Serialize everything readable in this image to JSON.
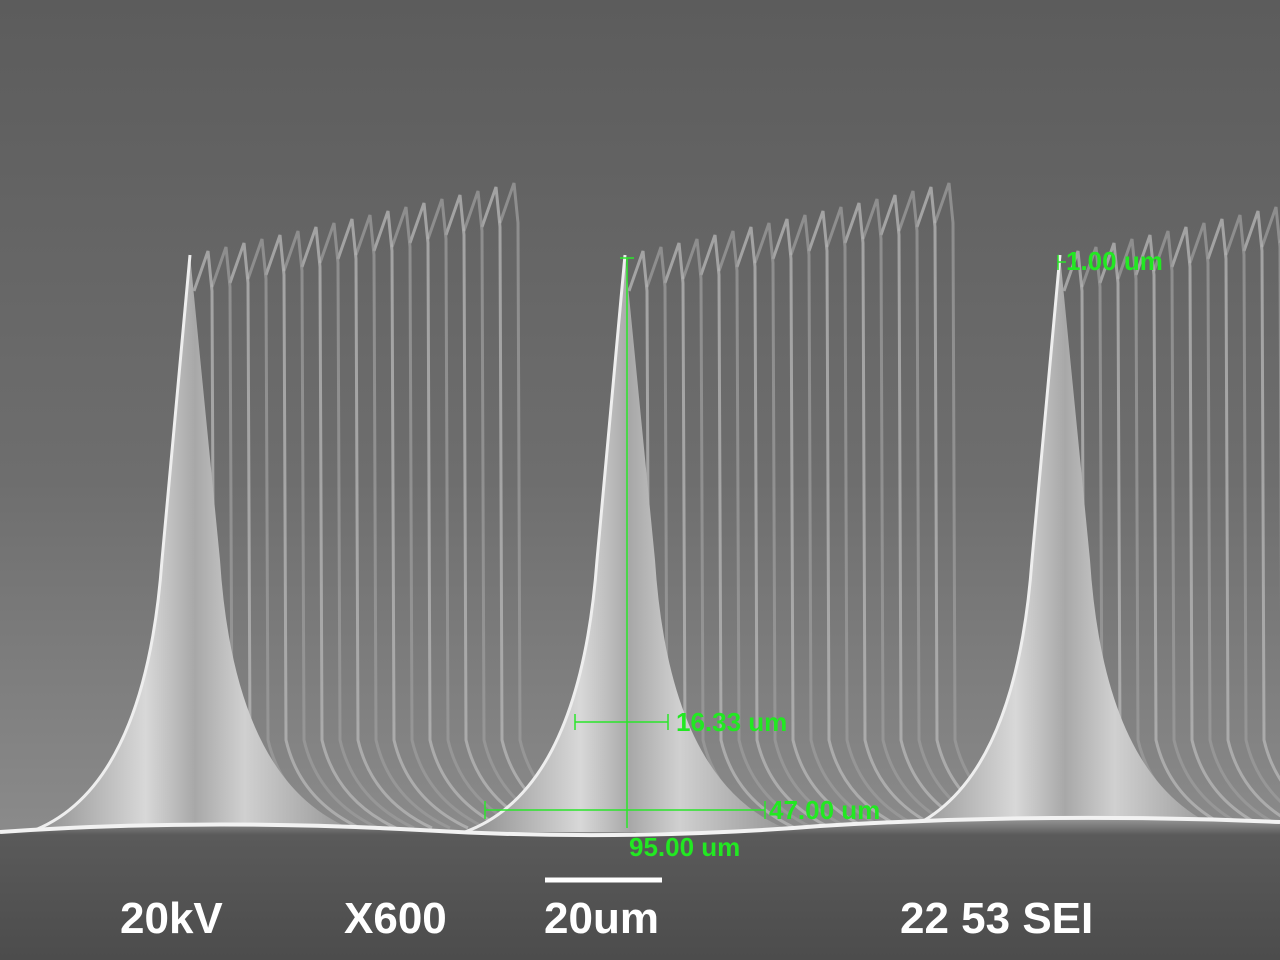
{
  "measurements": [
    {
      "label": "1.00 um"
    },
    {
      "label": "16.33 um"
    },
    {
      "label": "47.00 um"
    },
    {
      "label": "95.00 um"
    }
  ],
  "info_bar": {
    "voltage": "20kV",
    "magnification": "X600",
    "scale": "20um",
    "id": "22 53 SEI"
  }
}
